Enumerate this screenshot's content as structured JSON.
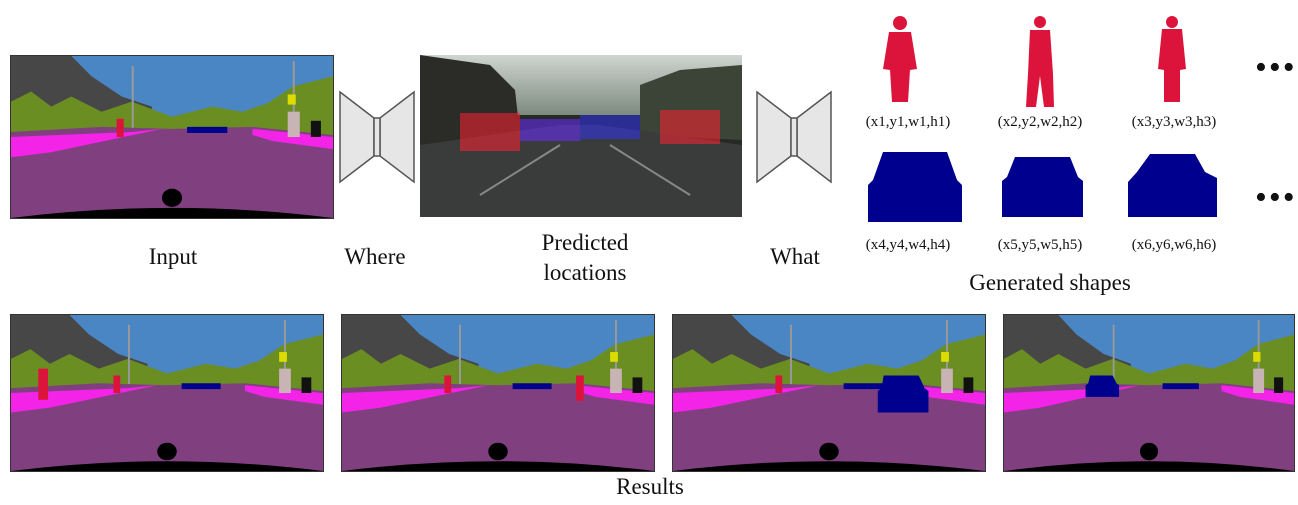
{
  "labels": {
    "input": "Input",
    "where": "Where",
    "predicted_line1": "Predicted",
    "predicted_line2": "locations",
    "what": "What",
    "generated_shapes": "Generated shapes",
    "results": "Results"
  },
  "shapes": {
    "pedestrians": [
      {
        "coords": "(x1,y1,w1,h1)"
      },
      {
        "coords": "(x2,y2,w2,h2)"
      },
      {
        "coords": "(x3,y3,w3,h3)"
      }
    ],
    "cars": [
      {
        "coords": "(x4,y4,w4,h4)"
      },
      {
        "coords": "(x5,y5,w5,h5)"
      },
      {
        "coords": "(x6,y6,w6,h6)"
      }
    ],
    "ellipsis": "•••"
  },
  "colors": {
    "sky": "#4a86c4",
    "building": "#474747",
    "vegetation": "#6b8e23",
    "road": "#804080",
    "sidewalk": "#f423e8",
    "car": "#00008e",
    "person": "#dc143c",
    "ego": "#000000"
  }
}
